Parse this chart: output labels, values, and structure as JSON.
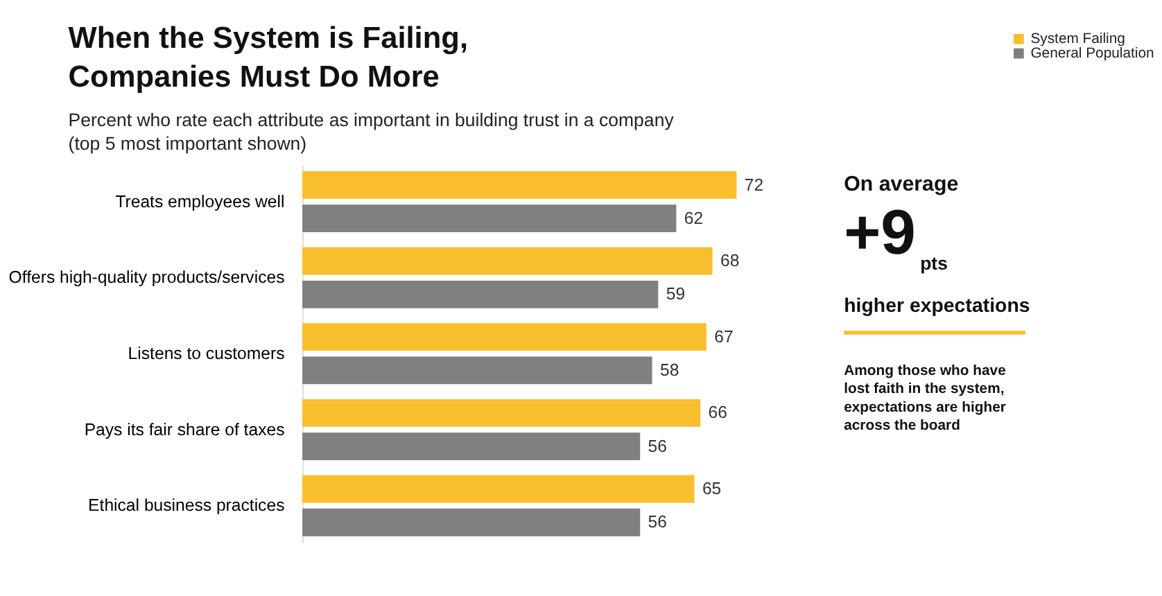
{
  "chart_data": {
    "type": "bar",
    "orientation": "horizontal",
    "title": [
      "When the System is Failing,",
      "Companies Must Do More"
    ],
    "subtitle": [
      "Percent who rate each attribute as important in building trust in a company",
      "(top 5 most important shown)"
    ],
    "categories": [
      "Treats employees well",
      "Offers high-quality products/services",
      "Listens to customers",
      "Pays its fair share of taxes",
      "Ethical business practices"
    ],
    "series": [
      {
        "name": "System Failing",
        "color": "#f8be2e",
        "values": [
          72,
          68,
          67,
          66,
          65
        ]
      },
      {
        "name": "General Population",
        "color": "#808080",
        "values": [
          62,
          59,
          58,
          56,
          56
        ]
      }
    ],
    "data_labels": true,
    "legend": "top right",
    "grid": false,
    "annotations": [
      "On average",
      "+9",
      "pts",
      "higher expectations",
      "Among those who have\nlost faith in the system,\nexpectations are higher\nacross the board"
    ]
  }
}
